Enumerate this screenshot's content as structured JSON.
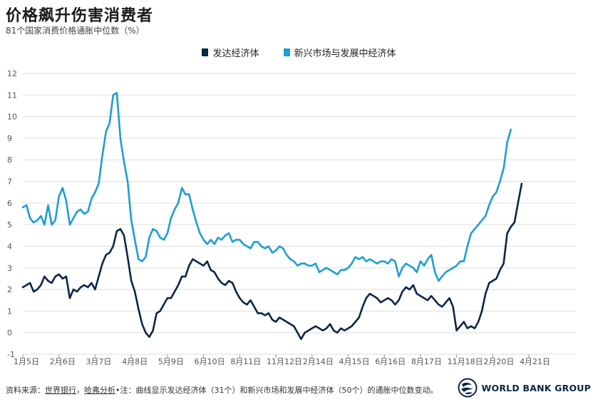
{
  "title": "价格飙升伤害消费者",
  "subtitle": "81个国家消费价格通胀中位数（%）",
  "footer": {
    "prefix": "资料来源：",
    "link1": "世界银行",
    "sep1": "，",
    "link2": "哈弗分析",
    "note": "•注：曲线显示发达经济体（31个）和新兴市场和发展中经济体（50个）的通胀中位数变动。"
  },
  "logo": {
    "text": "WORLD BANK GROUP"
  },
  "colors": {
    "advanced": "#0b2545",
    "emerging": "#1c9ed3",
    "grid": "#dddddd",
    "axis_text": "#555555"
  },
  "chart_data": {
    "type": "line",
    "title": "价格飙升伤害消费者",
    "subtitle": "81个国家消费价格通胀中位数（%）",
    "xlabel": "",
    "ylabel": "",
    "ylim": [
      -1,
      12
    ],
    "yticks": [
      -1,
      0,
      1,
      2,
      3,
      4,
      5,
      6,
      7,
      8,
      9,
      10,
      11,
      12
    ],
    "grid": true,
    "legend_position": "top-center",
    "x_range": [
      0,
      153
    ],
    "x_tick_labels": [
      {
        "pos": 0,
        "label": "1月5日"
      },
      {
        "pos": 10,
        "label": "2月6日"
      },
      {
        "pos": 20,
        "label": "3月7日"
      },
      {
        "pos": 30,
        "label": "4月8日"
      },
      {
        "pos": 40,
        "label": "5月9日"
      },
      {
        "pos": 50,
        "label": "6月10日"
      },
      {
        "pos": 60,
        "label": "8月11日"
      },
      {
        "pos": 70,
        "label": "11月12日"
      },
      {
        "pos": 80,
        "label": "2月14日"
      },
      {
        "pos": 90,
        "label": "4月15日"
      },
      {
        "pos": 100,
        "label": "6月16日"
      },
      {
        "pos": 110,
        "label": "8月17日"
      },
      {
        "pos": 120,
        "label": "11月18日"
      },
      {
        "pos": 130,
        "label": "2月20日"
      },
      {
        "pos": 140,
        "label": "4月21日"
      }
    ],
    "series": [
      {
        "name": "发达经济体",
        "color": "#0b2545",
        "points": [
          [
            0,
            2.1
          ],
          [
            1,
            2.2
          ],
          [
            2,
            2.3
          ],
          [
            3,
            1.9
          ],
          [
            4,
            2.0
          ],
          [
            5,
            2.2
          ],
          [
            6,
            2.6
          ],
          [
            7,
            2.4
          ],
          [
            8,
            2.3
          ],
          [
            9,
            2.6
          ],
          [
            10,
            2.7
          ],
          [
            11,
            2.5
          ],
          [
            12,
            2.6
          ],
          [
            13,
            1.6
          ],
          [
            14,
            2.0
          ],
          [
            15,
            1.9
          ],
          [
            16,
            2.1
          ],
          [
            17,
            2.2
          ],
          [
            18,
            2.1
          ],
          [
            19,
            2.3
          ],
          [
            20,
            2.0
          ],
          [
            21,
            2.6
          ],
          [
            22,
            3.2
          ],
          [
            23,
            3.6
          ],
          [
            24,
            3.7
          ],
          [
            25,
            4.0
          ],
          [
            26,
            4.7
          ],
          [
            27,
            4.8
          ],
          [
            28,
            4.5
          ],
          [
            29,
            3.5
          ],
          [
            30,
            2.4
          ],
          [
            31,
            1.9
          ],
          [
            32,
            1.1
          ],
          [
            33,
            0.4
          ],
          [
            34,
            0.0
          ],
          [
            35,
            -0.2
          ],
          [
            36,
            0.1
          ],
          [
            37,
            0.9
          ],
          [
            38,
            1.0
          ],
          [
            39,
            1.3
          ],
          [
            40,
            1.6
          ],
          [
            41,
            1.6
          ],
          [
            42,
            1.9
          ],
          [
            43,
            2.2
          ],
          [
            44,
            2.6
          ],
          [
            45,
            2.6
          ],
          [
            46,
            3.1
          ],
          [
            47,
            3.4
          ],
          [
            48,
            3.3
          ],
          [
            49,
            3.2
          ],
          [
            50,
            3.1
          ],
          [
            51,
            3.3
          ],
          [
            52,
            2.9
          ],
          [
            53,
            2.8
          ],
          [
            54,
            2.5
          ],
          [
            55,
            2.3
          ],
          [
            56,
            2.2
          ],
          [
            57,
            2.4
          ],
          [
            58,
            2.3
          ],
          [
            59,
            1.9
          ],
          [
            60,
            1.6
          ],
          [
            61,
            1.4
          ],
          [
            62,
            1.3
          ],
          [
            63,
            1.5
          ],
          [
            64,
            1.2
          ],
          [
            65,
            0.9
          ],
          [
            66,
            0.9
          ],
          [
            67,
            0.8
          ],
          [
            68,
            0.9
          ],
          [
            69,
            0.6
          ],
          [
            70,
            0.5
          ],
          [
            71,
            0.7
          ],
          [
            72,
            0.6
          ],
          [
            73,
            0.5
          ],
          [
            74,
            0.4
          ],
          [
            75,
            0.3
          ],
          [
            76,
            0.0
          ],
          [
            77,
            -0.3
          ],
          [
            78,
            0.0
          ],
          [
            79,
            0.1
          ],
          [
            80,
            0.2
          ],
          [
            81,
            0.3
          ],
          [
            82,
            0.2
          ],
          [
            83,
            0.1
          ],
          [
            84,
            0.2
          ],
          [
            85,
            0.4
          ],
          [
            86,
            0.1
          ],
          [
            87,
            0.0
          ],
          [
            88,
            0.2
          ],
          [
            89,
            0.1
          ],
          [
            90,
            0.2
          ],
          [
            91,
            0.3
          ],
          [
            92,
            0.5
          ],
          [
            93,
            0.7
          ],
          [
            94,
            1.2
          ],
          [
            95,
            1.6
          ],
          [
            96,
            1.8
          ],
          [
            97,
            1.7
          ],
          [
            98,
            1.6
          ],
          [
            99,
            1.4
          ],
          [
            100,
            1.5
          ],
          [
            101,
            1.6
          ],
          [
            102,
            1.5
          ],
          [
            103,
            1.3
          ],
          [
            104,
            1.5
          ],
          [
            105,
            1.9
          ],
          [
            106,
            2.1
          ],
          [
            107,
            2.0
          ],
          [
            108,
            2.2
          ],
          [
            109,
            1.8
          ],
          [
            110,
            1.7
          ],
          [
            111,
            1.6
          ],
          [
            112,
            1.5
          ],
          [
            113,
            1.7
          ],
          [
            114,
            1.5
          ],
          [
            115,
            1.3
          ],
          [
            116,
            1.2
          ],
          [
            117,
            1.4
          ],
          [
            118,
            1.6
          ],
          [
            119,
            1.2
          ],
          [
            120,
            0.1
          ],
          [
            121,
            0.3
          ],
          [
            122,
            0.5
          ],
          [
            123,
            0.2
          ],
          [
            124,
            0.3
          ],
          [
            125,
            0.2
          ],
          [
            126,
            0.5
          ],
          [
            127,
            1.0
          ],
          [
            128,
            1.8
          ],
          [
            129,
            2.3
          ],
          [
            130,
            2.4
          ],
          [
            131,
            2.5
          ],
          [
            132,
            2.9
          ],
          [
            133,
            3.2
          ],
          [
            134,
            4.6
          ],
          [
            135,
            4.9
          ],
          [
            136,
            5.1
          ],
          [
            137,
            6.0
          ],
          [
            138,
            6.9
          ]
        ]
      },
      {
        "name": "新兴市场与发展中经济体",
        "color": "#1c9ed3",
        "points": [
          [
            0,
            5.8
          ],
          [
            1,
            5.9
          ],
          [
            2,
            5.3
          ],
          [
            3,
            5.1
          ],
          [
            4,
            5.2
          ],
          [
            5,
            5.4
          ],
          [
            6,
            5.0
          ],
          [
            7,
            5.9
          ],
          [
            8,
            5.0
          ],
          [
            9,
            5.2
          ],
          [
            10,
            6.3
          ],
          [
            11,
            6.7
          ],
          [
            12,
            6.1
          ],
          [
            13,
            5.0
          ],
          [
            14,
            5.3
          ],
          [
            15,
            5.6
          ],
          [
            16,
            5.7
          ],
          [
            17,
            5.5
          ],
          [
            18,
            5.6
          ],
          [
            19,
            6.2
          ],
          [
            20,
            6.5
          ],
          [
            21,
            6.9
          ],
          [
            22,
            8.2
          ],
          [
            23,
            9.3
          ],
          [
            24,
            9.7
          ],
          [
            25,
            11.0
          ],
          [
            26,
            11.1
          ],
          [
            27,
            9.0
          ],
          [
            28,
            7.9
          ],
          [
            29,
            7.0
          ],
          [
            30,
            5.2
          ],
          [
            31,
            4.3
          ],
          [
            32,
            3.4
          ],
          [
            33,
            3.3
          ],
          [
            34,
            3.5
          ],
          [
            35,
            4.4
          ],
          [
            36,
            4.8
          ],
          [
            37,
            4.7
          ],
          [
            38,
            4.4
          ],
          [
            39,
            4.3
          ],
          [
            40,
            4.6
          ],
          [
            41,
            5.3
          ],
          [
            42,
            5.7
          ],
          [
            43,
            6.0
          ],
          [
            44,
            6.7
          ],
          [
            45,
            6.4
          ],
          [
            46,
            6.4
          ],
          [
            47,
            5.7
          ],
          [
            48,
            5.1
          ],
          [
            49,
            4.6
          ],
          [
            50,
            4.3
          ],
          [
            51,
            4.1
          ],
          [
            52,
            4.3
          ],
          [
            53,
            4.1
          ],
          [
            54,
            4.4
          ],
          [
            55,
            4.3
          ],
          [
            56,
            4.5
          ],
          [
            57,
            4.6
          ],
          [
            58,
            4.2
          ],
          [
            59,
            4.3
          ],
          [
            60,
            4.3
          ],
          [
            61,
            4.1
          ],
          [
            62,
            4.0
          ],
          [
            63,
            3.9
          ],
          [
            64,
            4.2
          ],
          [
            65,
            4.2
          ],
          [
            66,
            4.0
          ],
          [
            67,
            3.9
          ],
          [
            68,
            4.0
          ],
          [
            69,
            3.7
          ],
          [
            70,
            3.8
          ],
          [
            71,
            4.0
          ],
          [
            72,
            3.9
          ],
          [
            73,
            3.6
          ],
          [
            74,
            3.4
          ],
          [
            75,
            3.3
          ],
          [
            76,
            3.1
          ],
          [
            77,
            3.2
          ],
          [
            78,
            3.2
          ],
          [
            79,
            3.1
          ],
          [
            80,
            3.1
          ],
          [
            81,
            3.2
          ],
          [
            82,
            2.8
          ],
          [
            83,
            2.9
          ],
          [
            84,
            3.0
          ],
          [
            85,
            2.9
          ],
          [
            86,
            2.8
          ],
          [
            87,
            2.7
          ],
          [
            88,
            2.9
          ],
          [
            89,
            2.9
          ],
          [
            90,
            3.0
          ],
          [
            91,
            3.2
          ],
          [
            92,
            3.5
          ],
          [
            93,
            3.4
          ],
          [
            94,
            3.5
          ],
          [
            95,
            3.3
          ],
          [
            96,
            3.4
          ],
          [
            97,
            3.3
          ],
          [
            98,
            3.2
          ],
          [
            99,
            3.3
          ],
          [
            100,
            3.3
          ],
          [
            101,
            3.2
          ],
          [
            102,
            3.4
          ],
          [
            103,
            3.3
          ],
          [
            104,
            2.6
          ],
          [
            105,
            3.0
          ],
          [
            106,
            3.2
          ],
          [
            107,
            3.1
          ],
          [
            108,
            3.0
          ],
          [
            109,
            2.8
          ],
          [
            110,
            3.3
          ],
          [
            111,
            3.1
          ],
          [
            112,
            3.4
          ],
          [
            113,
            3.6
          ],
          [
            114,
            2.8
          ],
          [
            115,
            2.4
          ],
          [
            116,
            2.6
          ],
          [
            117,
            2.8
          ],
          [
            118,
            2.9
          ],
          [
            119,
            3.0
          ],
          [
            120,
            3.1
          ],
          [
            121,
            3.3
          ],
          [
            122,
            3.3
          ],
          [
            123,
            4.0
          ],
          [
            124,
            4.6
          ],
          [
            125,
            4.8
          ],
          [
            126,
            5.0
          ],
          [
            127,
            5.2
          ],
          [
            128,
            5.4
          ],
          [
            129,
            5.9
          ],
          [
            130,
            6.3
          ],
          [
            131,
            6.5
          ],
          [
            132,
            7.0
          ],
          [
            133,
            7.6
          ],
          [
            134,
            8.8
          ],
          [
            135,
            9.4
          ]
        ]
      }
    ]
  }
}
